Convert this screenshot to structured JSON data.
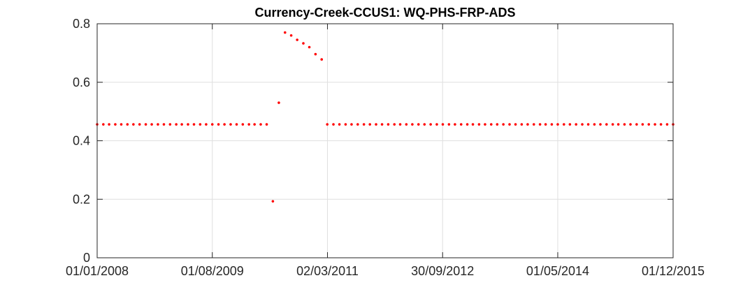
{
  "chart_data": {
    "type": "scatter",
    "title": "Currency-Creek-CCUS1: WQ-PHS-FRP-ADS",
    "xlabel": "",
    "ylabel": "",
    "xlim": [
      "2008-01-01",
      "2015-12-01"
    ],
    "ylim": [
      0,
      0.8
    ],
    "x_ticks": [
      "01/01/2008",
      "01/08/2009",
      "02/03/2011",
      "30/09/2012",
      "01/05/2014",
      "01/12/2015"
    ],
    "y_ticks": [
      "0",
      "0.2",
      "0.4",
      "0.6",
      "0.8"
    ],
    "grid": true,
    "marker_color": "#ff0000",
    "series": [
      {
        "marker": "dot",
        "points": [
          {
            "x": "2008-01-01",
            "y": 0.456
          },
          {
            "x": "2008-02-01",
            "y": 0.456
          },
          {
            "x": "2008-03-01",
            "y": 0.456
          },
          {
            "x": "2008-04-01",
            "y": 0.456
          },
          {
            "x": "2008-05-01",
            "y": 0.456
          },
          {
            "x": "2008-06-01",
            "y": 0.456
          },
          {
            "x": "2008-07-01",
            "y": 0.456
          },
          {
            "x": "2008-08-01",
            "y": 0.456
          },
          {
            "x": "2008-09-01",
            "y": 0.456
          },
          {
            "x": "2008-10-01",
            "y": 0.456
          },
          {
            "x": "2008-11-01",
            "y": 0.456
          },
          {
            "x": "2008-12-01",
            "y": 0.456
          },
          {
            "x": "2009-01-01",
            "y": 0.456
          },
          {
            "x": "2009-02-01",
            "y": 0.456
          },
          {
            "x": "2009-03-01",
            "y": 0.456
          },
          {
            "x": "2009-04-01",
            "y": 0.456
          },
          {
            "x": "2009-05-01",
            "y": 0.456
          },
          {
            "x": "2009-06-01",
            "y": 0.456
          },
          {
            "x": "2009-07-01",
            "y": 0.456
          },
          {
            "x": "2009-08-01",
            "y": 0.456
          },
          {
            "x": "2009-09-01",
            "y": 0.456
          },
          {
            "x": "2009-10-01",
            "y": 0.456
          },
          {
            "x": "2009-11-01",
            "y": 0.456
          },
          {
            "x": "2009-12-01",
            "y": 0.456
          },
          {
            "x": "2010-01-01",
            "y": 0.456
          },
          {
            "x": "2010-02-01",
            "y": 0.456
          },
          {
            "x": "2010-03-01",
            "y": 0.456
          },
          {
            "x": "2010-04-01",
            "y": 0.456
          },
          {
            "x": "2010-05-01",
            "y": 0.456
          },
          {
            "x": "2010-06-01",
            "y": 0.193
          },
          {
            "x": "2010-07-01",
            "y": 0.53
          },
          {
            "x": "2010-08-01",
            "y": 0.77
          },
          {
            "x": "2010-09-01",
            "y": 0.76
          },
          {
            "x": "2010-10-01",
            "y": 0.745
          },
          {
            "x": "2010-11-01",
            "y": 0.733
          },
          {
            "x": "2010-12-01",
            "y": 0.72
          },
          {
            "x": "2011-01-01",
            "y": 0.696
          },
          {
            "x": "2011-02-01",
            "y": 0.678
          },
          {
            "x": "2011-03-01",
            "y": 0.456
          },
          {
            "x": "2011-04-01",
            "y": 0.456
          },
          {
            "x": "2011-05-01",
            "y": 0.456
          },
          {
            "x": "2011-06-01",
            "y": 0.456
          },
          {
            "x": "2011-07-01",
            "y": 0.456
          },
          {
            "x": "2011-08-01",
            "y": 0.456
          },
          {
            "x": "2011-09-01",
            "y": 0.456
          },
          {
            "x": "2011-10-01",
            "y": 0.456
          },
          {
            "x": "2011-11-01",
            "y": 0.456
          },
          {
            "x": "2011-12-01",
            "y": 0.456
          },
          {
            "x": "2012-01-01",
            "y": 0.456
          },
          {
            "x": "2012-02-01",
            "y": 0.456
          },
          {
            "x": "2012-03-01",
            "y": 0.456
          },
          {
            "x": "2012-04-01",
            "y": 0.456
          },
          {
            "x": "2012-05-01",
            "y": 0.456
          },
          {
            "x": "2012-06-01",
            "y": 0.456
          },
          {
            "x": "2012-07-01",
            "y": 0.456
          },
          {
            "x": "2012-08-01",
            "y": 0.456
          },
          {
            "x": "2012-09-01",
            "y": 0.456
          },
          {
            "x": "2012-10-01",
            "y": 0.456
          },
          {
            "x": "2012-11-01",
            "y": 0.456
          },
          {
            "x": "2012-12-01",
            "y": 0.456
          },
          {
            "x": "2013-01-01",
            "y": 0.456
          },
          {
            "x": "2013-02-01",
            "y": 0.456
          },
          {
            "x": "2013-03-01",
            "y": 0.456
          },
          {
            "x": "2013-04-01",
            "y": 0.456
          },
          {
            "x": "2013-05-01",
            "y": 0.456
          },
          {
            "x": "2013-06-01",
            "y": 0.456
          },
          {
            "x": "2013-07-01",
            "y": 0.456
          },
          {
            "x": "2013-08-01",
            "y": 0.456
          },
          {
            "x": "2013-09-01",
            "y": 0.456
          },
          {
            "x": "2013-10-01",
            "y": 0.456
          },
          {
            "x": "2013-11-01",
            "y": 0.456
          },
          {
            "x": "2013-12-01",
            "y": 0.456
          },
          {
            "x": "2014-01-01",
            "y": 0.456
          },
          {
            "x": "2014-02-01",
            "y": 0.456
          },
          {
            "x": "2014-03-01",
            "y": 0.456
          },
          {
            "x": "2014-04-01",
            "y": 0.456
          },
          {
            "x": "2014-05-01",
            "y": 0.456
          },
          {
            "x": "2014-06-01",
            "y": 0.456
          },
          {
            "x": "2014-07-01",
            "y": 0.456
          },
          {
            "x": "2014-08-01",
            "y": 0.456
          },
          {
            "x": "2014-09-01",
            "y": 0.456
          },
          {
            "x": "2014-10-01",
            "y": 0.456
          },
          {
            "x": "2014-11-01",
            "y": 0.456
          },
          {
            "x": "2014-12-01",
            "y": 0.456
          },
          {
            "x": "2015-01-01",
            "y": 0.456
          },
          {
            "x": "2015-02-01",
            "y": 0.456
          },
          {
            "x": "2015-03-01",
            "y": 0.456
          },
          {
            "x": "2015-04-01",
            "y": 0.456
          },
          {
            "x": "2015-05-01",
            "y": 0.456
          },
          {
            "x": "2015-06-01",
            "y": 0.456
          },
          {
            "x": "2015-07-01",
            "y": 0.456
          },
          {
            "x": "2015-08-01",
            "y": 0.456
          },
          {
            "x": "2015-09-01",
            "y": 0.456
          },
          {
            "x": "2015-10-01",
            "y": 0.456
          },
          {
            "x": "2015-11-01",
            "y": 0.456
          },
          {
            "x": "2015-12-01",
            "y": 0.456
          }
        ]
      }
    ]
  }
}
